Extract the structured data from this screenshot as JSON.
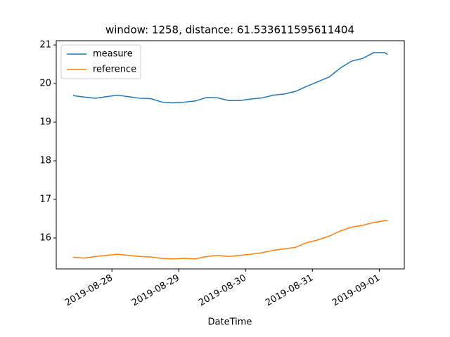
{
  "chart_data": {
    "type": "line",
    "title": "window: 1258, distance: 61.533611595611404",
    "x_label": "DateTime",
    "x": [
      "2019-08-27 10:00",
      "2019-08-27 14:00",
      "2019-08-27 18:00",
      "2019-08-27 22:00",
      "2019-08-28 02:00",
      "2019-08-28 06:00",
      "2019-08-28 10:00",
      "2019-08-28 14:00",
      "2019-08-28 18:00",
      "2019-08-28 22:00",
      "2019-08-29 02:00",
      "2019-08-29 06:00",
      "2019-08-29 10:00",
      "2019-08-29 14:00",
      "2019-08-29 18:00",
      "2019-08-29 22:00",
      "2019-08-30 02:00",
      "2019-08-30 06:00",
      "2019-08-30 10:00",
      "2019-08-30 14:00",
      "2019-08-30 18:00",
      "2019-08-30 22:00",
      "2019-08-31 02:00",
      "2019-08-31 06:00",
      "2019-08-31 10:00",
      "2019-08-31 14:00",
      "2019-08-31 18:00",
      "2019-08-31 22:00",
      "2019-09-01 02:00",
      "2019-09-01 03:00"
    ],
    "series": [
      {
        "name": "measure",
        "color": "#1f77b4",
        "values": [
          19.69,
          19.65,
          19.62,
          19.66,
          19.7,
          19.66,
          19.62,
          19.61,
          19.52,
          19.5,
          19.52,
          19.55,
          19.64,
          19.63,
          19.56,
          19.56,
          19.6,
          19.63,
          19.7,
          19.73,
          19.8,
          19.93,
          20.05,
          20.17,
          20.4,
          20.58,
          20.65,
          20.8,
          20.8,
          20.75
        ]
      },
      {
        "name": "reference",
        "color": "#ff7f0e",
        "values": [
          15.5,
          15.48,
          15.52,
          15.55,
          15.58,
          15.55,
          15.52,
          15.51,
          15.47,
          15.46,
          15.47,
          15.46,
          15.52,
          15.55,
          15.52,
          15.55,
          15.58,
          15.62,
          15.68,
          15.72,
          15.76,
          15.88,
          15.95,
          16.05,
          16.18,
          16.28,
          16.33,
          16.4,
          16.45,
          16.45
        ]
      }
    ],
    "xlim": [
      "2019-08-27 04:00",
      "2019-09-01 09:00"
    ],
    "xticks": [
      "2019-08-28",
      "2019-08-29",
      "2019-08-30",
      "2019-08-31",
      "2019-09-01"
    ],
    "ylim": [
      15.2,
      21.11
    ],
    "yticks": [
      16,
      17,
      18,
      19,
      20,
      21
    ],
    "legend": "upper-left"
  }
}
